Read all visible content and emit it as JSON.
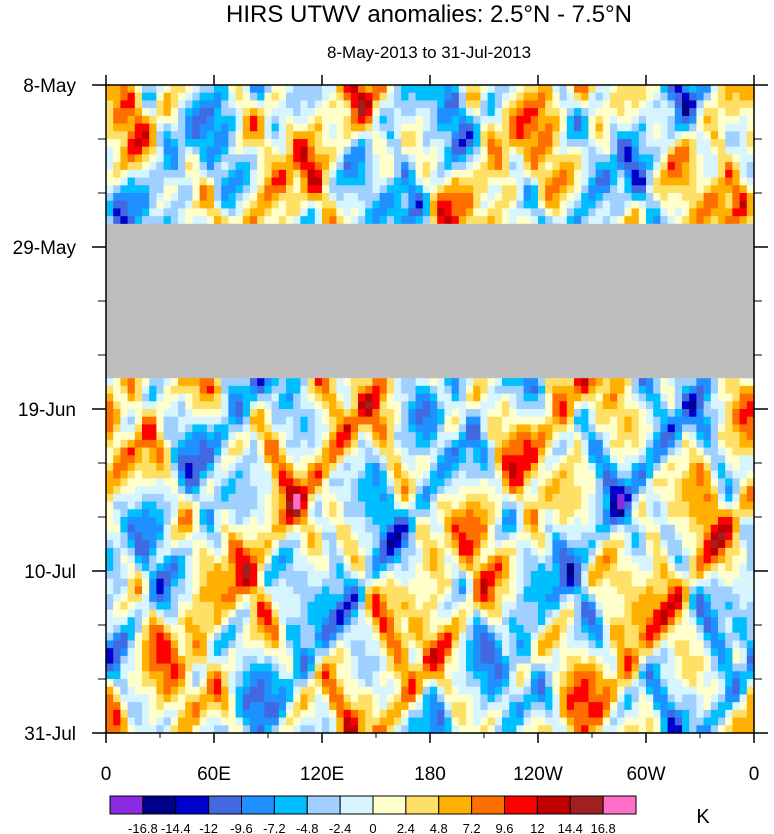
{
  "chart_data": {
    "type": "heatmap",
    "title": "HIRS UTWV anomalies: 2.5°N - 7.5°N",
    "subtitle": "8-May-2013 to 31-Jul-2013",
    "x_axis": {
      "ticks": [
        "0",
        "60E",
        "120E",
        "180",
        "120W",
        "60W",
        "0"
      ],
      "tick_longitudes_east": [
        0,
        60,
        120,
        180,
        240,
        300,
        360
      ],
      "range": [
        0,
        360
      ]
    },
    "y_axis": {
      "ticks": [
        "8-May",
        "29-May",
        "19-Jun",
        "10-Jul",
        "31-Jul"
      ],
      "tick_day_offsets": [
        0,
        21,
        42,
        63,
        84
      ],
      "range": [
        0,
        84
      ]
    },
    "missing_data": {
      "start_day": 18,
      "end_day": 38,
      "color": "#bebebe"
    },
    "colorbar": {
      "unit": "K",
      "levels": [
        -16.8,
        -14.4,
        -12,
        -9.6,
        -7.2,
        -4.8,
        -2.4,
        0,
        2.4,
        4.8,
        7.2,
        9.6,
        12,
        14.4,
        16.8
      ],
      "level_labels": [
        "-16.8",
        "-14.4",
        "-12",
        "-9.6",
        "-7.2",
        "-4.8",
        "-2.4",
        "0",
        "2.4",
        "4.8",
        "7.2",
        "9.6",
        "12",
        "14.4",
        "16.8"
      ],
      "colors": [
        "#8a2be2",
        "#00008b",
        "#0000cd",
        "#4169e1",
        "#1e90ff",
        "#00bfff",
        "#a0d0ff",
        "#d6f5ff",
        "#ffffcc",
        "#ffe066",
        "#ffb000",
        "#ff6f00",
        "#ff0000",
        "#c00000",
        "#a02020",
        "#ff6ec7"
      ]
    }
  }
}
